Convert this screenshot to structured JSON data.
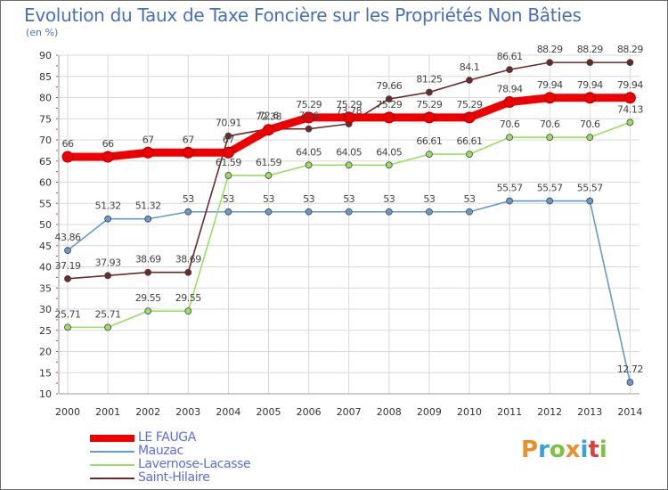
{
  "title": "Evolution du Taux de Taxe Foncière sur les Propriétés Non Bâties",
  "unit_label": "(en %)",
  "brand": {
    "text": "Proxiti",
    "colors": [
      "#e8902a",
      "#3aa0d8",
      "#7cc243",
      "#e8902a",
      "#3aa0d8",
      "#d9423b",
      "#7cc243"
    ]
  },
  "chart_data": {
    "type": "line",
    "title": "Evolution du Taux de Taxe Foncière sur les Propriétés Non Bâties",
    "ylabel": "(en %)",
    "xlabel": "",
    "ylim": [
      10,
      90
    ],
    "yticks": [
      10,
      15,
      20,
      25,
      30,
      35,
      40,
      45,
      50,
      55,
      60,
      65,
      70,
      75,
      80,
      85,
      90
    ],
    "grid": true,
    "legend_position": "bottom-left",
    "x": [
      "2000",
      "2001",
      "2002",
      "2003",
      "2004",
      "2005",
      "2006",
      "2007",
      "2008",
      "2009",
      "2010",
      "2011",
      "2012",
      "2013",
      "2014"
    ],
    "series": [
      {
        "name": "LE FAUGA",
        "color": "#ee0000",
        "values": [
          66,
          66,
          67,
          67,
          67,
          72.38,
          75.29,
          75.29,
          75.29,
          75.29,
          75.29,
          78.94,
          79.94,
          79.94,
          79.94
        ],
        "labels": [
          "66",
          "66",
          "67",
          "67",
          "67",
          "72.38",
          "75.29",
          "75.29",
          "75.29",
          "75.29",
          "75.29",
          "78.94",
          "79.94",
          "79.94",
          "79.94"
        ]
      },
      {
        "name": "Mauzac",
        "color": "#6699cc",
        "values": [
          43.86,
          51.32,
          51.32,
          53,
          53,
          53,
          53,
          53,
          53,
          53,
          53,
          55.57,
          55.57,
          55.57,
          12.72
        ],
        "labels": [
          "43.86",
          "51.32",
          "51.32",
          "53",
          "53",
          "53",
          "53",
          "53",
          "53",
          "53",
          "53",
          "55.57",
          "55.57",
          "55.57",
          "12.72"
        ]
      },
      {
        "name": "Lavernose-Lacasse",
        "color": "#99dd66",
        "values": [
          25.71,
          25.71,
          29.55,
          29.55,
          61.59,
          61.59,
          64.05,
          64.05,
          64.05,
          66.61,
          66.61,
          70.6,
          70.6,
          70.6,
          74.13
        ],
        "labels": [
          "25.71",
          "25.71",
          "29.55",
          "29.55",
          "61.59",
          "61.59",
          "64.05",
          "64.05",
          "64.05",
          "66.61",
          "66.61",
          "70.6",
          "70.6",
          "70.6",
          "74.13"
        ]
      },
      {
        "name": "Saint-Hilaire",
        "color": "#6b2a2a",
        "values": [
          37.19,
          37.93,
          38.69,
          38.69,
          70.91,
          72.6,
          72.6,
          73.78,
          79.66,
          81.25,
          84.1,
          86.61,
          88.29,
          88.29,
          88.29
        ],
        "labels": [
          "37.19",
          "37.93",
          "38.69",
          "38.69",
          "70.91",
          "72.6",
          "72.6",
          "73.78",
          "79.66",
          "81.25",
          "84.1",
          "86.61",
          "88.29",
          "88.29",
          "88.29"
        ]
      }
    ]
  }
}
